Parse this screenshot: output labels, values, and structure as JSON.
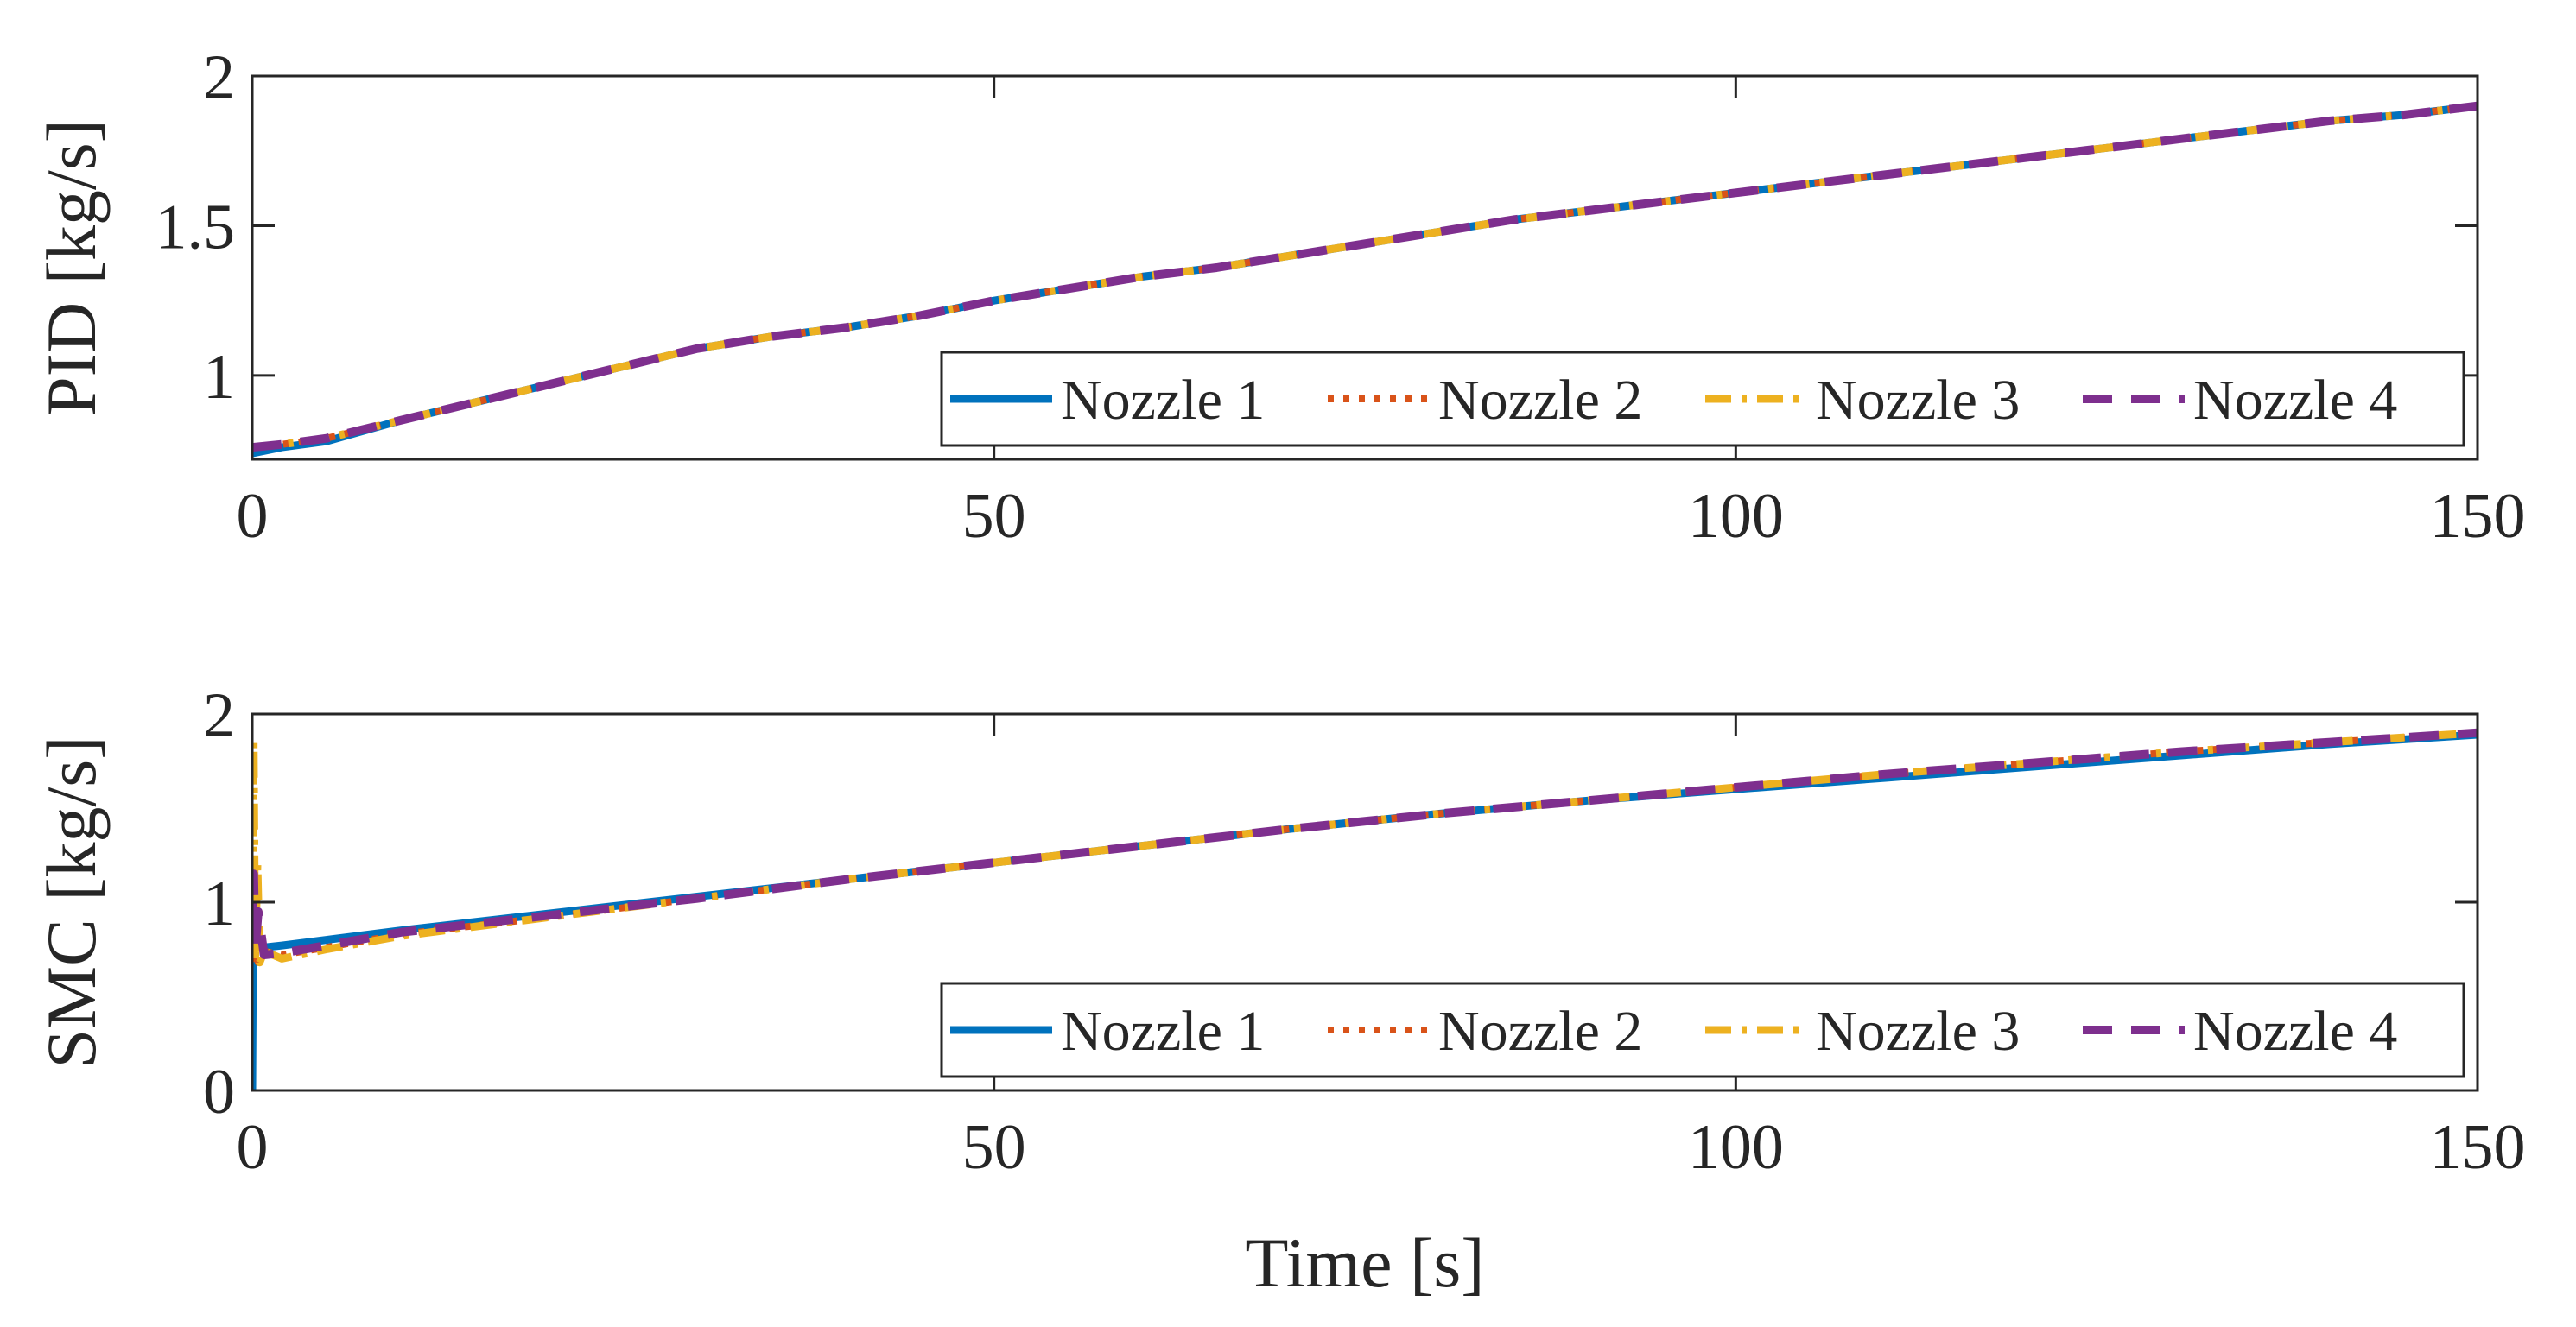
{
  "figure": {
    "xlabel": "Time [s]"
  },
  "legend": {
    "entries": [
      "Nozzle 1",
      "Nozzle 2",
      "Nozzle 3",
      "Nozzle 4"
    ],
    "placement": "bottom-right"
  },
  "series_styles": [
    {
      "name": "Nozzle 1",
      "color": "#0072BD",
      "dash": "solid"
    },
    {
      "name": "Nozzle 2",
      "color": "#D95319",
      "dash": "dotted"
    },
    {
      "name": "Nozzle 3",
      "color": "#EDB120",
      "dash": "dash-dot"
    },
    {
      "name": "Nozzle 4",
      "color": "#7E2F8E",
      "dash": "dashed"
    }
  ],
  "chart_data": [
    {
      "type": "line",
      "ylabel": "PID [kg/s]",
      "xlim": [
        0,
        150
      ],
      "ylim": [
        0.72,
        2
      ],
      "xticks": [
        0,
        50,
        100,
        150
      ],
      "xtick_labels": [
        "0",
        "50",
        "100",
        "150"
      ],
      "yticks": [
        1,
        1.5,
        2
      ],
      "ytick_labels": [
        "1",
        "1.5",
        "2"
      ],
      "x": [
        0,
        2,
        5,
        10,
        15,
        20,
        25,
        30,
        35,
        40,
        45,
        50,
        55,
        60,
        65,
        70,
        75,
        80,
        85,
        90,
        95,
        100,
        105,
        110,
        115,
        120,
        125,
        130,
        135,
        140,
        145,
        150
      ],
      "series": [
        {
          "name": "Nozzle 1",
          "values": [
            0.74,
            0.76,
            0.78,
            0.85,
            0.91,
            0.97,
            1.03,
            1.09,
            1.13,
            1.16,
            1.2,
            1.25,
            1.29,
            1.33,
            1.36,
            1.4,
            1.44,
            1.48,
            1.52,
            1.55,
            1.58,
            1.61,
            1.64,
            1.67,
            1.7,
            1.73,
            1.76,
            1.79,
            1.82,
            1.85,
            1.87,
            1.9
          ]
        },
        {
          "name": "Nozzle 2",
          "values": [
            0.76,
            0.77,
            0.79,
            0.85,
            0.91,
            0.97,
            1.03,
            1.09,
            1.13,
            1.16,
            1.2,
            1.25,
            1.29,
            1.33,
            1.36,
            1.4,
            1.44,
            1.48,
            1.52,
            1.55,
            1.58,
            1.61,
            1.64,
            1.67,
            1.7,
            1.73,
            1.76,
            1.79,
            1.82,
            1.85,
            1.87,
            1.9
          ]
        },
        {
          "name": "Nozzle 3",
          "values": [
            0.76,
            0.77,
            0.79,
            0.85,
            0.91,
            0.97,
            1.03,
            1.09,
            1.13,
            1.16,
            1.2,
            1.25,
            1.29,
            1.33,
            1.36,
            1.4,
            1.44,
            1.48,
            1.52,
            1.55,
            1.58,
            1.61,
            1.64,
            1.67,
            1.7,
            1.73,
            1.76,
            1.79,
            1.82,
            1.85,
            1.87,
            1.9
          ]
        },
        {
          "name": "Nozzle 4",
          "values": [
            0.76,
            0.77,
            0.79,
            0.85,
            0.91,
            0.97,
            1.03,
            1.09,
            1.13,
            1.16,
            1.2,
            1.25,
            1.29,
            1.33,
            1.36,
            1.4,
            1.44,
            1.48,
            1.52,
            1.55,
            1.58,
            1.61,
            1.64,
            1.67,
            1.7,
            1.73,
            1.76,
            1.79,
            1.82,
            1.85,
            1.87,
            1.9
          ]
        }
      ]
    },
    {
      "type": "line",
      "ylabel": "SMC [kg/s]",
      "xlim": [
        0,
        150
      ],
      "ylim": [
        0,
        2
      ],
      "xticks": [
        0,
        50,
        100,
        150
      ],
      "xtick_labels": [
        "0",
        "50",
        "100",
        "150"
      ],
      "yticks": [
        0,
        1,
        2
      ],
      "ytick_labels": [
        "0",
        "1",
        "2"
      ],
      "series": [
        {
          "name": "Nozzle 1",
          "x": [
            0,
            0.05,
            0.1,
            0.3,
            0.8,
            2,
            5,
            10,
            20,
            30,
            40,
            50,
            60,
            70,
            80,
            90,
            100,
            110,
            120,
            130,
            140,
            150
          ],
          "values": [
            0,
            0.78,
            0.74,
            0.8,
            0.76,
            0.77,
            0.8,
            0.85,
            0.94,
            1.03,
            1.12,
            1.21,
            1.3,
            1.39,
            1.47,
            1.54,
            1.6,
            1.66,
            1.72,
            1.78,
            1.84,
            1.89
          ]
        },
        {
          "name": "Nozzle 2",
          "x": [
            0,
            0.1,
            0.2,
            0.4,
            0.8,
            2,
            5,
            10,
            20,
            30,
            40,
            50,
            60,
            70,
            80,
            90,
            100,
            110,
            120,
            130,
            140,
            150
          ],
          "values": [
            0.8,
            0.7,
            0.85,
            0.68,
            0.74,
            0.72,
            0.76,
            0.83,
            0.92,
            1.02,
            1.12,
            1.21,
            1.3,
            1.39,
            1.47,
            1.54,
            1.61,
            1.68,
            1.74,
            1.8,
            1.85,
            1.9
          ]
        },
        {
          "name": "Nozzle 3",
          "x": [
            0,
            0.1,
            0.2,
            0.35,
            0.5,
            0.8,
            2,
            5,
            10,
            20,
            30,
            40,
            50,
            60,
            70,
            80,
            90,
            100,
            110,
            120,
            130,
            140,
            150
          ],
          "values": [
            0.8,
            1.85,
            0.7,
            1.2,
            0.68,
            0.74,
            0.7,
            0.75,
            0.82,
            0.92,
            1.02,
            1.12,
            1.21,
            1.3,
            1.39,
            1.47,
            1.54,
            1.61,
            1.68,
            1.74,
            1.8,
            1.85,
            1.9
          ]
        },
        {
          "name": "Nozzle 4",
          "x": [
            0,
            0.1,
            0.2,
            0.4,
            0.8,
            2,
            5,
            10,
            20,
            30,
            40,
            50,
            60,
            70,
            80,
            90,
            100,
            110,
            120,
            130,
            140,
            150
          ],
          "values": [
            0.85,
            1.15,
            0.75,
            0.95,
            0.72,
            0.73,
            0.77,
            0.84,
            0.93,
            1.02,
            1.12,
            1.21,
            1.3,
            1.39,
            1.47,
            1.54,
            1.61,
            1.68,
            1.74,
            1.8,
            1.85,
            1.9
          ]
        }
      ]
    }
  ]
}
